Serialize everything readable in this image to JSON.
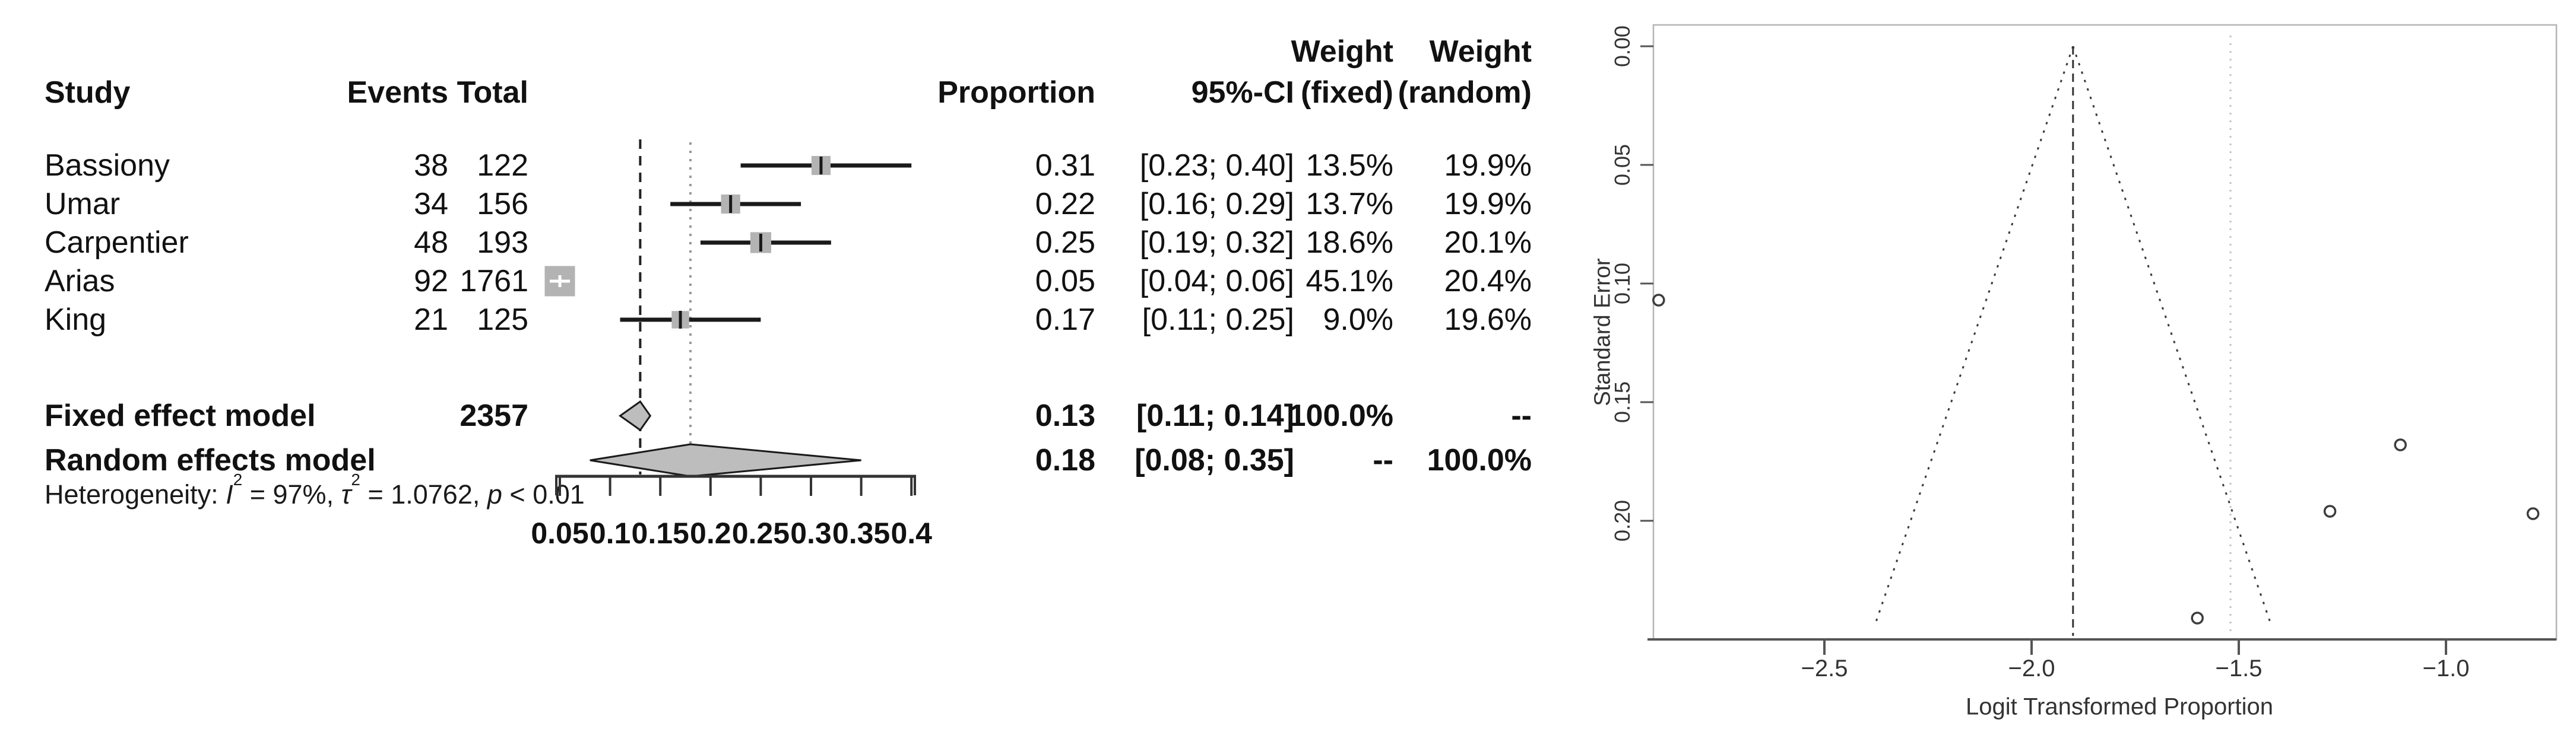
{
  "header": {
    "study": "Study",
    "events": "Events",
    "total": "Total",
    "proportion": "Proportion",
    "ci": "95%-CI",
    "weight_word_1": "Weight",
    "weight_word_2": "Weight",
    "fixed": "(fixed)",
    "random": "(random)"
  },
  "heterogeneity": {
    "pre": "Heterogeneity: ",
    "i1": "I",
    "s1": "2",
    "m1": " = 97%, ",
    "i2": "τ",
    "s2": "2",
    "m2": " = 1.0762, ",
    "i3": "p",
    "m3": " < 0.01"
  },
  "chart_data": [
    {
      "type": "forest",
      "title": "",
      "xlabel": "",
      "axis": {
        "tick_values": [
          0.05,
          0.1,
          0.15,
          0.2,
          0.25,
          0.3,
          0.35,
          0.4
        ],
        "tick_labels": [
          "0.05",
          "0.1",
          "0.15",
          "0.2",
          "0.25",
          "0.3",
          "0.35",
          "0.4"
        ],
        "xlim": [
          0.04,
          0.41
        ]
      },
      "studies": [
        {
          "name": "Bassiony",
          "events": "38",
          "total": "122",
          "proportion": "0.31",
          "ci": "[0.23; 0.40]",
          "weight_fixed": "13.5%",
          "weight_random": "19.9%",
          "prop": 0.31,
          "lo": 0.23,
          "hi": 0.4,
          "w": 13.5
        },
        {
          "name": "Umar",
          "events": "34",
          "total": "156",
          "proportion": "0.22",
          "ci": "[0.16; 0.29]",
          "weight_fixed": "13.7%",
          "weight_random": "19.9%",
          "prop": 0.22,
          "lo": 0.16,
          "hi": 0.29,
          "w": 13.7
        },
        {
          "name": "Carpentier",
          "events": "48",
          "total": "193",
          "proportion": "0.25",
          "ci": "[0.19; 0.32]",
          "weight_fixed": "18.6%",
          "weight_random": "20.1%",
          "prop": 0.25,
          "lo": 0.19,
          "hi": 0.32,
          "w": 18.6
        },
        {
          "name": "Arias",
          "events": "92",
          "total": "1761",
          "proportion": "0.05",
          "ci": "[0.04; 0.06]",
          "weight_fixed": "45.1%",
          "weight_random": "20.4%",
          "prop": 0.05,
          "lo": 0.04,
          "hi": 0.06,
          "w": 45.1
        },
        {
          "name": "King",
          "events": "21",
          "total": "125",
          "proportion": "0.17",
          "ci": "[0.11; 0.25]",
          "weight_fixed": "9.0%",
          "weight_random": "19.6%",
          "prop": 0.17,
          "lo": 0.11,
          "hi": 0.25,
          "w": 9.0
        }
      ],
      "fixed": {
        "label": "Fixed effect model",
        "total": "2357",
        "proportion": "0.13",
        "ci": "[0.11; 0.14]",
        "weight_fixed": "100.0%",
        "weight_random": "--",
        "v": 0.13,
        "lo": 0.11,
        "hi": 0.14
      },
      "random": {
        "label": "Random effects model",
        "proportion": "0.18",
        "ci": "[0.08; 0.35]",
        "weight_fixed": "--",
        "weight_random": "100.0%",
        "v": 0.18,
        "lo": 0.08,
        "hi": 0.35
      },
      "ref_lines": {
        "fixed_dashed": 0.13,
        "random_dotted": 0.18
      }
    },
    {
      "type": "scatter",
      "subtype": "funnel",
      "xlabel": "Logit Transformed Proportion",
      "ylabel": "Standard Error",
      "x_ticks": {
        "values": [
          -2.5,
          -2.0,
          -1.5,
          -1.0
        ],
        "labels": [
          "−2.5",
          "−2.0",
          "−1.5",
          "−1.0"
        ]
      },
      "y_ticks": {
        "values": [
          0.0,
          0.05,
          0.1,
          0.15,
          0.2
        ],
        "labels": [
          "0.00",
          "0.05",
          "0.10",
          "0.15",
          "0.20"
        ]
      },
      "xlim": [
        -2.92,
        -0.73
      ],
      "ylim": [
        0,
        0.255
      ],
      "points": [
        {
          "study": "Arias",
          "x": -2.9,
          "y": 0.107
        },
        {
          "study": "King",
          "x": -1.6,
          "y": 0.241
        },
        {
          "study": "Umar",
          "x": -1.28,
          "y": 0.196
        },
        {
          "study": "Carpentier",
          "x": -1.11,
          "y": 0.168
        },
        {
          "study": "Bassiony",
          "x": -0.79,
          "y": 0.197
        }
      ],
      "funnel": {
        "apex_x": -1.9,
        "apex_se": 0.0,
        "slope_z": 1.96,
        "se_bottom": 0.244
      },
      "ref_lines": {
        "fixed_dashed_x": -1.9,
        "random_dotted_x": -1.52
      },
      "grid": false,
      "legend": null
    }
  ],
  "colors": {
    "text": "#111111",
    "square_fill": "#b3b3b3",
    "diamond_fill": "#bdbdbd",
    "line_black": "#1a1a1a",
    "dashed_ref": "#222222",
    "dotted_ref": "#999999",
    "funnel_box": "#b5b5b5",
    "funnel_axis": "#555555",
    "funnel_line": "#3a3a3a",
    "funnel_grey_ref": "#c2c2c2",
    "point_stroke": "#3d3d3d"
  }
}
